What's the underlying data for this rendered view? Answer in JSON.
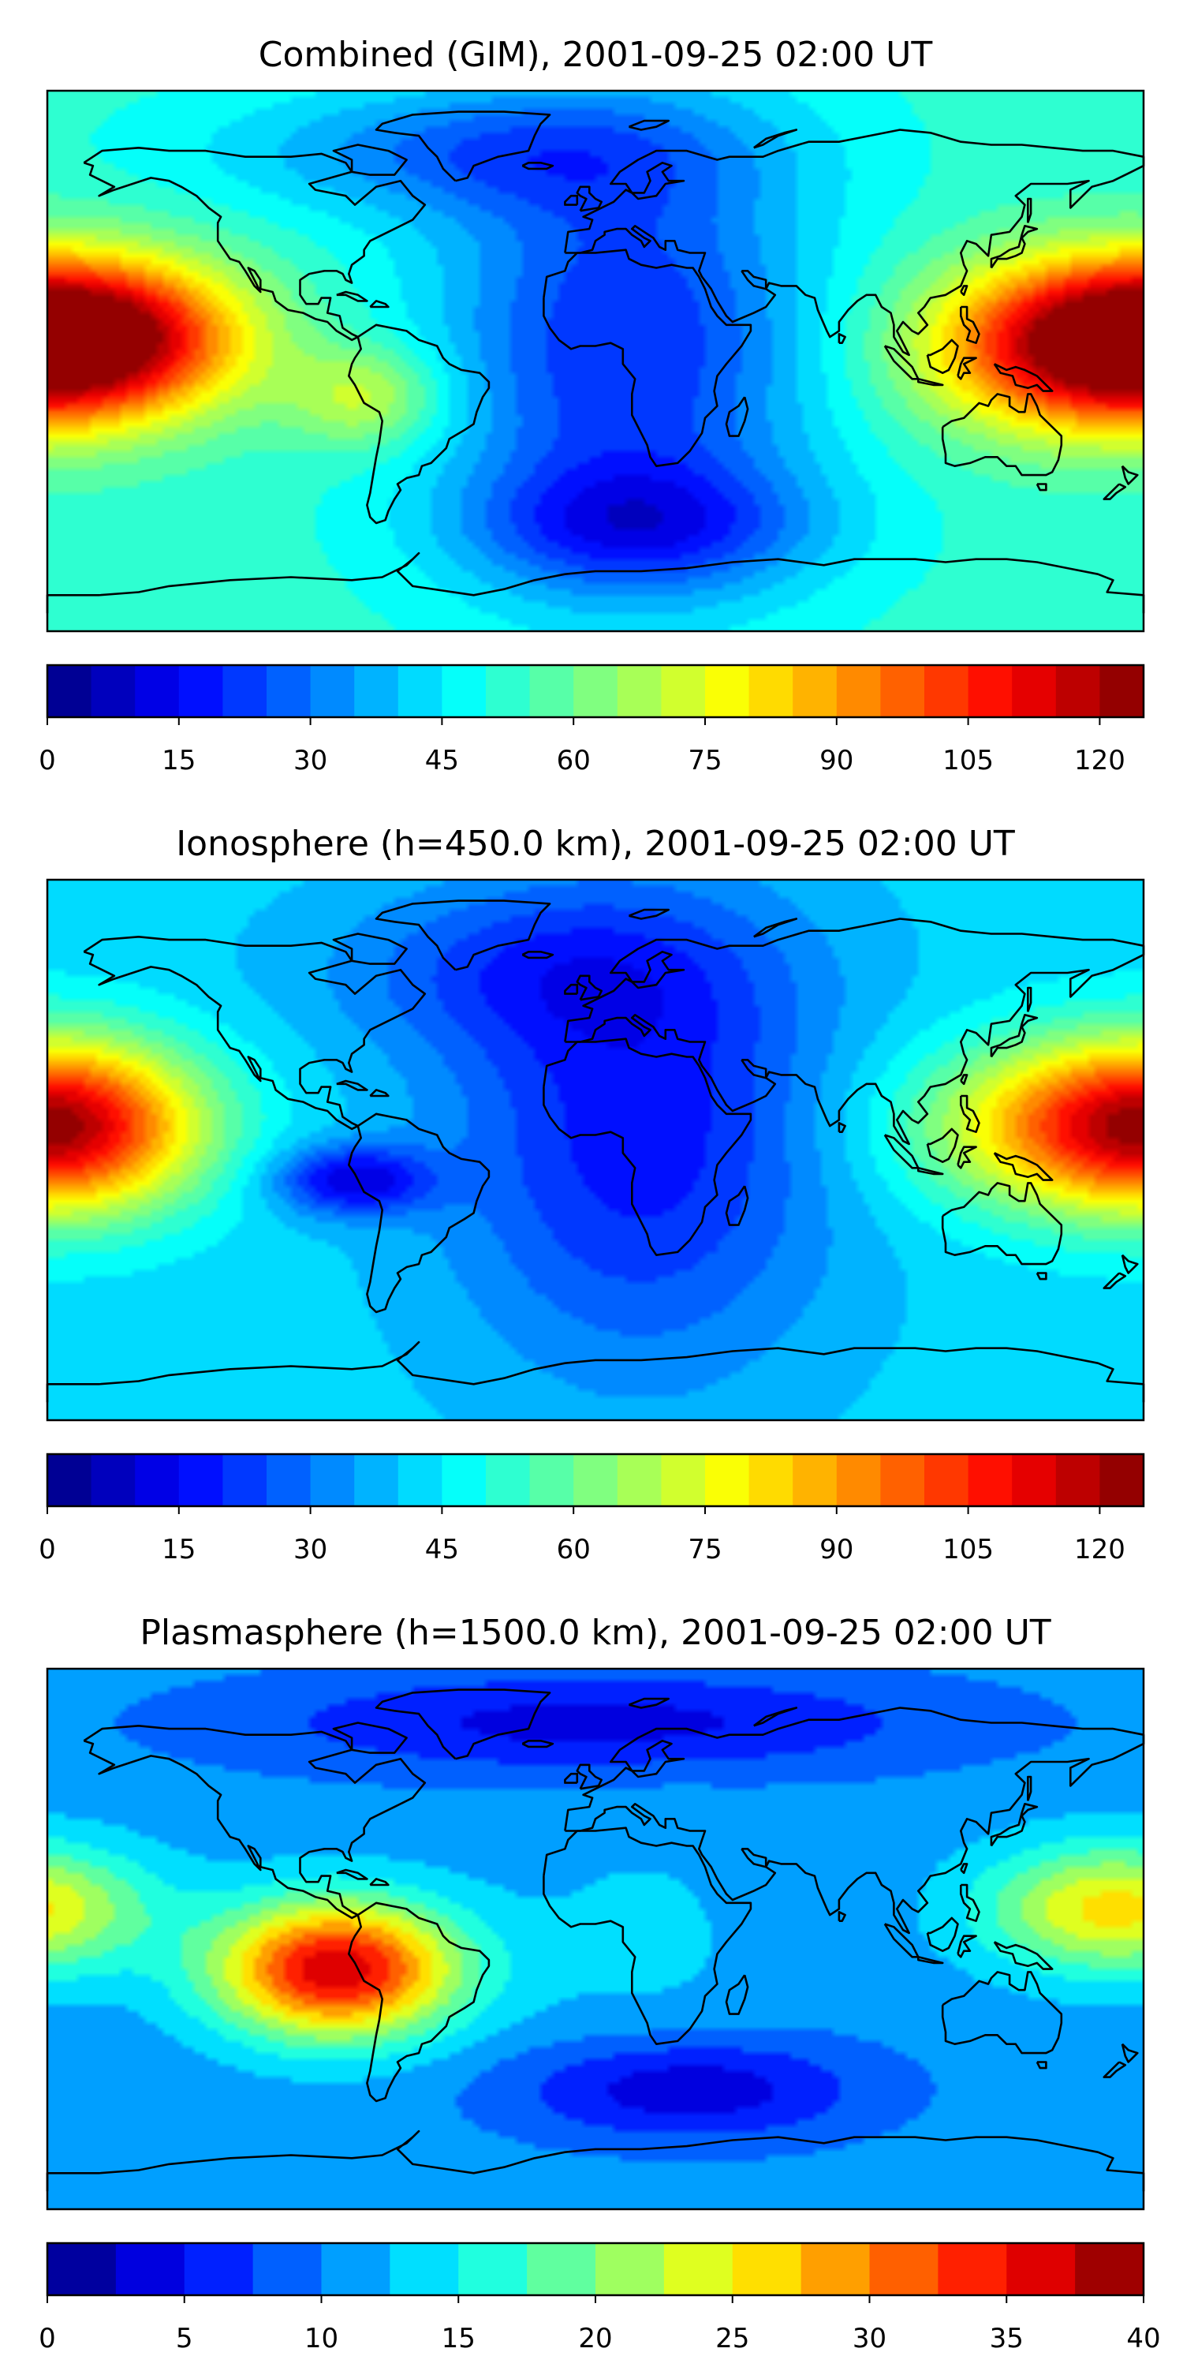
{
  "chart_data": [
    {
      "type": "heatmap",
      "title": "Combined (GIM), 2001-09-25 02:00 UT",
      "colorbar": {
        "min": 0,
        "max": 125,
        "levels": 25,
        "ticks": [
          0,
          15,
          30,
          45,
          60,
          75,
          90,
          105,
          120
        ]
      },
      "field": {
        "base": 52,
        "blobs": [
          {
            "lon": -165,
            "lat": 8,
            "a": 62,
            "slon": 35,
            "slat": 18
          },
          {
            "lon": 160,
            "lat": 5,
            "a": 55,
            "slon": 38,
            "slat": 20
          },
          {
            "lon": -75,
            "lat": -12,
            "a": 22,
            "slon": 18,
            "slat": 12
          },
          {
            "lon": 10,
            "lat": 5,
            "a": -32,
            "slon": 45,
            "slat": 55
          },
          {
            "lon": 15,
            "lat": -55,
            "a": -25,
            "slon": 40,
            "slat": 15
          },
          {
            "lon": -40,
            "lat": 70,
            "a": -20,
            "slon": 60,
            "slat": 15
          }
        ]
      }
    },
    {
      "type": "heatmap",
      "title": "Ionosphere  (h=450.0 km), 2001-09-25 02:00 UT",
      "colorbar": {
        "min": 0,
        "max": 125,
        "levels": 25,
        "ticks": [
          0,
          15,
          30,
          45,
          60,
          75,
          90,
          105,
          120
        ]
      },
      "field": {
        "base": 42,
        "blobs": [
          {
            "lon": -170,
            "lat": 8,
            "a": 45,
            "slon": 30,
            "slat": 20
          },
          {
            "lon": 160,
            "lat": 8,
            "a": 45,
            "slon": 40,
            "slat": 20
          },
          {
            "lon": -80,
            "lat": -10,
            "a": -30,
            "slon": 18,
            "slat": 8
          },
          {
            "lon": 15,
            "lat": 5,
            "a": -25,
            "slon": 45,
            "slat": 55
          },
          {
            "lon": -20,
            "lat": 60,
            "a": -15,
            "slon": 50,
            "slat": 20
          }
        ]
      }
    },
    {
      "type": "heatmap",
      "title": "Plasmasphere (h=1500.0 km), 2001-09-25 02:00 UT",
      "colorbar": {
        "min": 0,
        "max": 40,
        "levels": 16,
        "ticks": [
          0,
          5,
          10,
          15,
          20,
          25,
          30,
          35,
          40
        ]
      },
      "field": {
        "base": 11,
        "blobs": [
          {
            "lon": -85,
            "lat": -10,
            "a": 26,
            "slon": 28,
            "slat": 16
          },
          {
            "lon": 170,
            "lat": 10,
            "a": 15,
            "slon": 30,
            "slat": 15
          },
          {
            "lon": 30,
            "lat": -50,
            "a": -8,
            "slon": 40,
            "slat": 12
          },
          {
            "lon": 0,
            "lat": 72,
            "a": -7,
            "slon": 80,
            "slat": 12
          },
          {
            "lon": 15,
            "lat": 0,
            "a": 2,
            "slon": 30,
            "slat": 30
          }
        ]
      }
    }
  ]
}
